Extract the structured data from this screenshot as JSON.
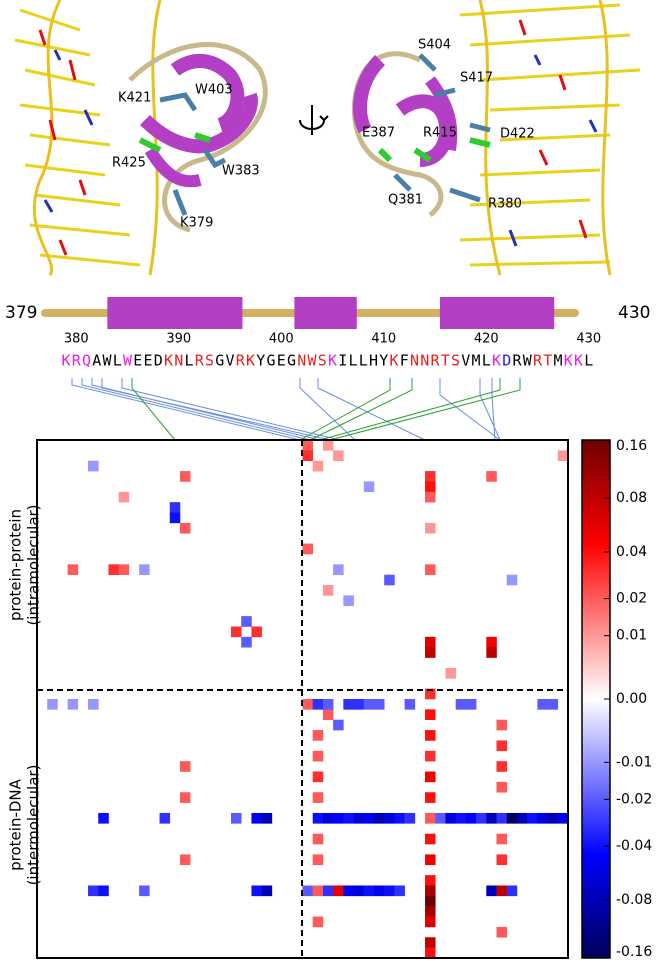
{
  "residue_labels_left": [
    "K421",
    "W403",
    "R425",
    "W383",
    "K379"
  ],
  "residue_labels_right": [
    "S404",
    "S417",
    "E387",
    "R415",
    "D422",
    "Q381",
    "R380"
  ],
  "secondary_structure": {
    "start": 379,
    "end": 430,
    "helices": [
      [
        385,
        398
      ],
      [
        403,
        409
      ],
      [
        417,
        428
      ]
    ],
    "coil_color": "#d4b062",
    "helix_color": "#b23fc4"
  },
  "sequence_ticks": [
    380,
    390,
    400,
    410,
    420,
    430
  ],
  "sequence": [
    {
      "letter": "K",
      "color": "#e81ee8"
    },
    {
      "letter": "R",
      "color": "#e81ee8"
    },
    {
      "letter": "Q",
      "color": "#e81ee8"
    },
    {
      "letter": "A",
      "color": "#000000"
    },
    {
      "letter": "W",
      "color": "#000000"
    },
    {
      "letter": "L",
      "color": "#000000"
    },
    {
      "letter": "W",
      "color": "#e81ee8"
    },
    {
      "letter": "E",
      "color": "#000000"
    },
    {
      "letter": "E",
      "color": "#000000"
    },
    {
      "letter": "D",
      "color": "#000000"
    },
    {
      "letter": "K",
      "color": "#e82020"
    },
    {
      "letter": "N",
      "color": "#e82020"
    },
    {
      "letter": "L",
      "color": "#000000"
    },
    {
      "letter": "R",
      "color": "#e82020"
    },
    {
      "letter": "S",
      "color": "#e82020"
    },
    {
      "letter": "G",
      "color": "#000000"
    },
    {
      "letter": "V",
      "color": "#000000"
    },
    {
      "letter": "R",
      "color": "#e82020"
    },
    {
      "letter": "K",
      "color": "#e82020"
    },
    {
      "letter": "Y",
      "color": "#000000"
    },
    {
      "letter": "G",
      "color": "#000000"
    },
    {
      "letter": "E",
      "color": "#000000"
    },
    {
      "letter": "G",
      "color": "#000000"
    },
    {
      "letter": "N",
      "color": "#e82020"
    },
    {
      "letter": "W",
      "color": "#e82020"
    },
    {
      "letter": "S",
      "color": "#e82020"
    },
    {
      "letter": "K",
      "color": "#e81ee8"
    },
    {
      "letter": "I",
      "color": "#000000"
    },
    {
      "letter": "L",
      "color": "#000000"
    },
    {
      "letter": "L",
      "color": "#000000"
    },
    {
      "letter": "H",
      "color": "#000000"
    },
    {
      "letter": "Y",
      "color": "#000000"
    },
    {
      "letter": "K",
      "color": "#e82020"
    },
    {
      "letter": "F",
      "color": "#000000"
    },
    {
      "letter": "N",
      "color": "#e82020"
    },
    {
      "letter": "N",
      "color": "#e82020"
    },
    {
      "letter": "R",
      "color": "#e82020"
    },
    {
      "letter": "T",
      "color": "#e82020"
    },
    {
      "letter": "S",
      "color": "#e82020"
    },
    {
      "letter": "V",
      "color": "#000000"
    },
    {
      "letter": "M",
      "color": "#000000"
    },
    {
      "letter": "L",
      "color": "#000000"
    },
    {
      "letter": "K",
      "color": "#e81ee8"
    },
    {
      "letter": "D",
      "color": "#2020e8"
    },
    {
      "letter": "R",
      "color": "#000000"
    },
    {
      "letter": "W",
      "color": "#000000"
    },
    {
      "letter": "R",
      "color": "#e82020"
    },
    {
      "letter": "T",
      "color": "#e82020"
    },
    {
      "letter": "M",
      "color": "#000000"
    },
    {
      "letter": "K",
      "color": "#e81ee8"
    },
    {
      "letter": "K",
      "color": "#e81ee8"
    },
    {
      "letter": "L",
      "color": "#000000"
    }
  ],
  "heatmap": {
    "row_labels": [
      [
        "protein-protein",
        "(intramolecular)"
      ],
      [
        "protein-DNA",
        "(intermolecular)"
      ]
    ],
    "clim": [
      -0.16,
      0.16
    ],
    "color_scale": {
      "type": "symlog",
      "linthresh": 0.01
    },
    "colorbar_ticks": [
      {
        "value": 0.16,
        "label": "0.16"
      },
      {
        "value": 0.08,
        "label": "0.08"
      },
      {
        "value": 0.04,
        "label": "0.04"
      },
      {
        "value": 0.02,
        "label": "0.02"
      },
      {
        "value": 0.01,
        "label": "0.01"
      },
      {
        "value": 0,
        "label": "0.00"
      },
      {
        "value": -0.01,
        "label": "-0.01"
      },
      {
        "value": -0.02,
        "label": "-0.02"
      },
      {
        "value": -0.04,
        "label": "-0.04"
      },
      {
        "value": -0.08,
        "label": "-0.08"
      },
      {
        "value": -0.16,
        "label": "-0.16"
      }
    ],
    "cells": [
      [
        0,
        26,
        0.02
      ],
      [
        1,
        26,
        0.03
      ],
      [
        2,
        27,
        0.01
      ],
      [
        0,
        28,
        0.01
      ],
      [
        1,
        29,
        0.01
      ],
      [
        3,
        38,
        0.03
      ],
      [
        4,
        38,
        0.04
      ],
      [
        5,
        38,
        0.02
      ],
      [
        8,
        38,
        0.01
      ],
      [
        12,
        38,
        0.02
      ],
      [
        19,
        38,
        0.06
      ],
      [
        20,
        38,
        0.08
      ],
      [
        19,
        44,
        0.05
      ],
      [
        20,
        44,
        0.08
      ],
      [
        6,
        13,
        -0.03
      ],
      [
        7,
        13,
        -0.04
      ],
      [
        12,
        7,
        0.03
      ],
      [
        12,
        8,
        0.02
      ],
      [
        12,
        10,
        -0.01
      ],
      [
        12,
        29,
        -0.01
      ],
      [
        13,
        34,
        -0.02
      ],
      [
        13,
        46,
        -0.01
      ],
      [
        18,
        19,
        0.03
      ],
      [
        18,
        21,
        0.03
      ],
      [
        17,
        20,
        -0.02
      ],
      [
        19,
        20,
        -0.02
      ],
      [
        2,
        5,
        -0.01
      ],
      [
        5,
        8,
        0.01
      ],
      [
        4,
        32,
        -0.01
      ],
      [
        3,
        44,
        0.02
      ],
      [
        1,
        51,
        0.01
      ],
      [
        12,
        3,
        0.02
      ],
      [
        14,
        28,
        0.01
      ],
      [
        15,
        30,
        -0.01
      ],
      [
        22,
        40,
        0.01
      ],
      [
        10,
        26,
        0.02
      ],
      [
        3,
        14,
        0.02
      ],
      [
        8,
        14,
        0.02
      ],
      [
        25,
        26,
        0.02
      ],
      [
        25,
        27,
        -0.03
      ],
      [
        26,
        28,
        0.02
      ],
      [
        27,
        29,
        -0.02
      ],
      [
        25,
        28,
        -0.02
      ],
      [
        25,
        30,
        -0.03
      ],
      [
        25,
        31,
        -0.03
      ],
      [
        25,
        32,
        -0.02
      ],
      [
        25,
        33,
        -0.02
      ],
      [
        25,
        36,
        -0.02
      ],
      [
        25,
        41,
        -0.02
      ],
      [
        25,
        42,
        -0.02
      ],
      [
        25,
        49,
        -0.02
      ],
      [
        25,
        50,
        -0.02
      ],
      [
        25,
        1,
        -0.01
      ],
      [
        25,
        3,
        -0.01
      ],
      [
        25,
        5,
        -0.01
      ],
      [
        24,
        38,
        0.03
      ],
      [
        26,
        38,
        0.04
      ],
      [
        28,
        38,
        0.04
      ],
      [
        30,
        38,
        0.03
      ],
      [
        32,
        38,
        0.05
      ],
      [
        34,
        38,
        0.04
      ],
      [
        36,
        38,
        0.02
      ],
      [
        38,
        38,
        0.04
      ],
      [
        40,
        38,
        0.05
      ],
      [
        42,
        38,
        0.04
      ],
      [
        43,
        38,
        0.1
      ],
      [
        44,
        38,
        0.16
      ],
      [
        45,
        38,
        0.1
      ],
      [
        46,
        38,
        0.06
      ],
      [
        48,
        38,
        0.08
      ],
      [
        49,
        38,
        0.04
      ],
      [
        36,
        27,
        -0.04
      ],
      [
        36,
        28,
        -0.06
      ],
      [
        36,
        29,
        -0.05
      ],
      [
        36,
        30,
        -0.04
      ],
      [
        36,
        31,
        -0.06
      ],
      [
        36,
        32,
        -0.05
      ],
      [
        36,
        33,
        -0.08
      ],
      [
        36,
        34,
        -0.06
      ],
      [
        36,
        35,
        -0.04
      ],
      [
        36,
        36,
        -0.03
      ],
      [
        36,
        39,
        -0.02
      ],
      [
        36,
        40,
        -0.06
      ],
      [
        36,
        41,
        -0.04
      ],
      [
        36,
        42,
        -0.05
      ],
      [
        36,
        43,
        -0.03
      ],
      [
        36,
        44,
        -0.08
      ],
      [
        36,
        45,
        -0.03
      ],
      [
        36,
        46,
        -0.16
      ],
      [
        36,
        47,
        -0.08
      ],
      [
        36,
        48,
        -0.04
      ],
      [
        36,
        49,
        -0.06
      ],
      [
        36,
        50,
        -0.08
      ],
      [
        36,
        51,
        -0.05
      ],
      [
        36,
        6,
        -0.04
      ],
      [
        36,
        12,
        -0.03
      ],
      [
        36,
        19,
        -0.02
      ],
      [
        36,
        21,
        -0.05
      ],
      [
        36,
        22,
        -0.08
      ],
      [
        43,
        26,
        -0.02
      ],
      [
        43,
        27,
        0.02
      ],
      [
        43,
        28,
        -0.03
      ],
      [
        43,
        29,
        0.06
      ],
      [
        43,
        30,
        -0.05
      ],
      [
        43,
        31,
        -0.06
      ],
      [
        43,
        32,
        -0.04
      ],
      [
        43,
        33,
        -0.05
      ],
      [
        43,
        34,
        -0.04
      ],
      [
        43,
        35,
        -0.03
      ],
      [
        43,
        44,
        -0.08
      ],
      [
        43,
        45,
        0.08
      ],
      [
        43,
        46,
        -0.03
      ],
      [
        43,
        5,
        -0.03
      ],
      [
        43,
        6,
        -0.04
      ],
      [
        43,
        10,
        -0.02
      ],
      [
        43,
        21,
        -0.04
      ],
      [
        43,
        22,
        -0.08
      ],
      [
        28,
        27,
        0.02
      ],
      [
        30,
        27,
        0.02
      ],
      [
        32,
        27,
        0.03
      ],
      [
        34,
        27,
        0.02
      ],
      [
        38,
        27,
        0.02
      ],
      [
        40,
        27,
        0.02
      ],
      [
        46,
        27,
        0.02
      ],
      [
        27,
        45,
        0.02
      ],
      [
        29,
        45,
        0.03
      ],
      [
        31,
        45,
        0.03
      ],
      [
        33,
        45,
        0.02
      ],
      [
        38,
        45,
        0.02
      ],
      [
        40,
        45,
        0.03
      ],
      [
        47,
        45,
        0.02
      ],
      [
        31,
        14,
        0.02
      ],
      [
        34,
        14,
        0.02
      ],
      [
        40,
        14,
        0.02
      ]
    ]
  }
}
